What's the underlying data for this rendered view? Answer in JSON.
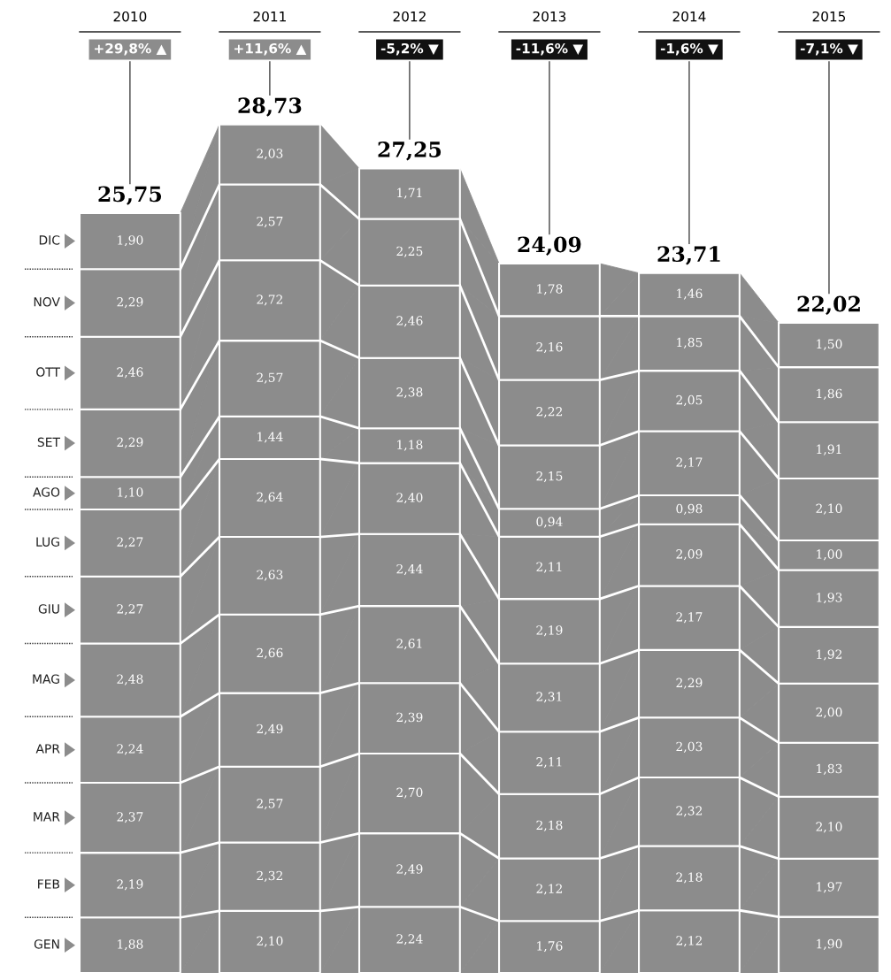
{
  "chart_data": {
    "type": "bar",
    "stacked": true,
    "legend": "left",
    "categories": [
      "2010",
      "2011",
      "2012",
      "2013",
      "2014",
      "2015"
    ],
    "series": [
      {
        "name": "GEN",
        "color": "#8c8c8c",
        "values": [
          1.88,
          2.1,
          2.24,
          1.76,
          2.12,
          1.9
        ],
        "value_labels": [
          "1,88",
          "2,10",
          "2,24",
          "1,76",
          "2,12",
          "1,90"
        ]
      },
      {
        "name": "FEB",
        "color": "#8c8c8c",
        "values": [
          2.19,
          2.32,
          2.49,
          2.12,
          2.18,
          1.97
        ],
        "value_labels": [
          "2,19",
          "2,32",
          "2,49",
          "2,12",
          "2,18",
          "1,97"
        ]
      },
      {
        "name": "MAR",
        "color": "#8c8c8c",
        "values": [
          2.37,
          2.57,
          2.7,
          2.18,
          2.32,
          2.1
        ],
        "value_labels": [
          "2,37",
          "2,57",
          "2,70",
          "2,18",
          "2,32",
          "2,10"
        ]
      },
      {
        "name": "APR",
        "color": "#8c8c8c",
        "values": [
          2.24,
          2.49,
          2.39,
          2.11,
          2.03,
          1.83
        ],
        "value_labels": [
          "2,24",
          "2,49",
          "2,39",
          "2,11",
          "2,03",
          "1,83"
        ]
      },
      {
        "name": "MAG",
        "color": "#8c8c8c",
        "values": [
          2.48,
          2.66,
          2.61,
          2.31,
          2.29,
          2.0
        ],
        "value_labels": [
          "2,48",
          "2,66",
          "2,61",
          "2,31",
          "2,29",
          "2,00"
        ]
      },
      {
        "name": "GIU",
        "color": "#8c8c8c",
        "values": [
          2.27,
          2.63,
          2.44,
          2.19,
          2.17,
          1.92
        ],
        "value_labels": [
          "2,27",
          "2,63",
          "2,44",
          "2,19",
          "2,17",
          "1,92"
        ]
      },
      {
        "name": "LUG",
        "color": "#8c8c8c",
        "values": [
          2.27,
          2.64,
          2.4,
          2.11,
          2.09,
          1.93
        ],
        "value_labels": [
          "2,27",
          "2,64",
          "2,40",
          "2,11",
          "2,09",
          "1,93"
        ]
      },
      {
        "name": "AGO",
        "color": "#8c8c8c",
        "values": [
          1.1,
          1.44,
          1.18,
          0.94,
          0.98,
          1.0
        ],
        "value_labels": [
          "1,10",
          "1,44",
          "1,18",
          "0,94",
          "0,98",
          "1,00"
        ]
      },
      {
        "name": "SET",
        "color": "#8c8c8c",
        "values": [
          2.29,
          2.57,
          2.38,
          2.15,
          2.17,
          2.1
        ],
        "value_labels": [
          "2,29",
          "2,57",
          "2,38",
          "2,15",
          "2,17",
          "2,10"
        ]
      },
      {
        "name": "OTT",
        "color": "#8c8c8c",
        "values": [
          2.46,
          2.72,
          2.46,
          2.22,
          2.05,
          1.91
        ],
        "value_labels": [
          "2,46",
          "2,72",
          "2,46",
          "2,22",
          "2,05",
          "1,91"
        ]
      },
      {
        "name": "NOV",
        "color": "#8c8c8c",
        "values": [
          2.29,
          2.57,
          2.25,
          2.16,
          1.85,
          1.86
        ],
        "value_labels": [
          "2,29",
          "2,57",
          "2,25",
          "2,16",
          "1,85",
          "1,86"
        ]
      },
      {
        "name": "DIC",
        "color": "#8c8c8c",
        "values": [
          1.9,
          2.03,
          1.71,
          1.78,
          1.46,
          1.5
        ],
        "value_labels": [
          "1,90",
          "2,03",
          "1,71",
          "1,78",
          "1,46",
          "1,50"
        ]
      }
    ],
    "totals": [
      "25,75",
      "28,73",
      "27,25",
      "24,09",
      "23,71",
      "22,02"
    ],
    "annotations": [
      "+29,8% ▲",
      "+11,6% ▲",
      "-5,2% ▼",
      "-11,6% ▼",
      "-1,6% ▼",
      "-7,1% ▼"
    ]
  }
}
